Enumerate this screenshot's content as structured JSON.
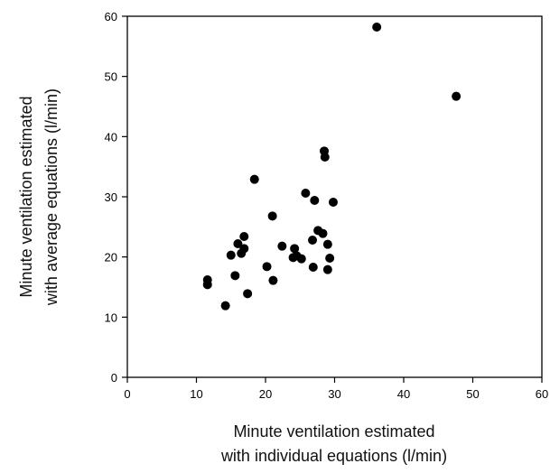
{
  "chart_data": {
    "type": "scatter",
    "title": "",
    "xlabel_lines": [
      "Minute ventilation estimated",
      "with individual equations (l/min)"
    ],
    "ylabel_lines": [
      "Minute ventilation estimated",
      "with average equations (l/min)"
    ],
    "xlim": [
      0,
      60
    ],
    "ylim": [
      0,
      60
    ],
    "xticks": [
      "0",
      "10",
      "20",
      "30",
      "40",
      "50",
      "60"
    ],
    "yticks": [
      "0",
      "10",
      "20",
      "30",
      "40",
      "50",
      "60"
    ],
    "grid": false,
    "legend": "none",
    "marker_color": "#000000",
    "points": [
      {
        "x": 11.6,
        "y": 16.2
      },
      {
        "x": 11.6,
        "y": 15.4
      },
      {
        "x": 14.2,
        "y": 11.9
      },
      {
        "x": 15.0,
        "y": 20.3
      },
      {
        "x": 15.6,
        "y": 16.9
      },
      {
        "x": 16.0,
        "y": 22.2
      },
      {
        "x": 16.5,
        "y": 20.6
      },
      {
        "x": 16.9,
        "y": 21.4
      },
      {
        "x": 16.9,
        "y": 23.4
      },
      {
        "x": 17.4,
        "y": 13.9
      },
      {
        "x": 18.4,
        "y": 32.9
      },
      {
        "x": 20.2,
        "y": 18.4
      },
      {
        "x": 21.0,
        "y": 26.8
      },
      {
        "x": 21.1,
        "y": 16.1
      },
      {
        "x": 22.4,
        "y": 21.8
      },
      {
        "x": 24.0,
        "y": 19.9
      },
      {
        "x": 24.2,
        "y": 21.4
      },
      {
        "x": 24.5,
        "y": 20.2
      },
      {
        "x": 25.2,
        "y": 19.7
      },
      {
        "x": 25.8,
        "y": 30.6
      },
      {
        "x": 26.8,
        "y": 22.8
      },
      {
        "x": 26.9,
        "y": 18.3
      },
      {
        "x": 27.1,
        "y": 29.4
      },
      {
        "x": 27.6,
        "y": 24.4
      },
      {
        "x": 28.3,
        "y": 23.9
      },
      {
        "x": 28.5,
        "y": 37.6
      },
      {
        "x": 28.6,
        "y": 36.6
      },
      {
        "x": 29.0,
        "y": 22.1
      },
      {
        "x": 29.0,
        "y": 17.9
      },
      {
        "x": 29.3,
        "y": 19.8
      },
      {
        "x": 29.8,
        "y": 29.1
      },
      {
        "x": 36.1,
        "y": 58.2
      },
      {
        "x": 47.6,
        "y": 46.7
      }
    ]
  }
}
